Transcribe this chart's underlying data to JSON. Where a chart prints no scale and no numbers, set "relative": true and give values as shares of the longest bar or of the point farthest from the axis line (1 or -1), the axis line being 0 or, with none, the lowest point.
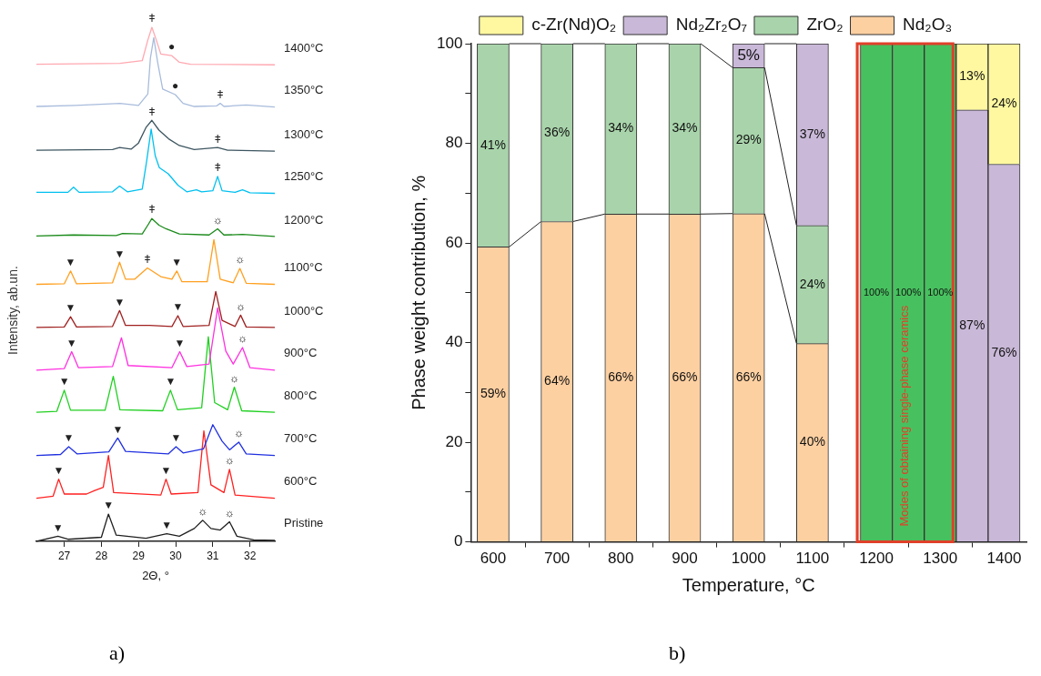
{
  "chart_data": [
    {
      "type": "line",
      "relative": true,
      "xlabel": "2Θ, °",
      "ylabel": "Intensity, ab.un.",
      "xlim": [
        26.25,
        32.67
      ],
      "xticks": [
        27,
        28,
        29,
        30,
        31,
        32
      ],
      "tick_labels": "x",
      "grid": false,
      "legend": false,
      "marker": "none",
      "line_style": "solid",
      "series": [
        {
          "name": "1400°C",
          "color": "#ffa8b0",
          "x": [
            26.25,
            28.5,
            29.1,
            29.25,
            29.36,
            29.48,
            29.6,
            29.89,
            30.1,
            30.4,
            32.67
          ],
          "values": [
            0.928,
            0.93,
            0.935,
            0.975,
            1.0,
            0.975,
            0.948,
            0.945,
            0.932,
            0.928,
            0.927
          ]
        },
        {
          "name": "1350°C",
          "color": "#a8bcdc",
          "x": [
            26.25,
            27.3,
            28.5,
            29.0,
            29.25,
            29.32,
            29.41,
            29.52,
            29.65,
            29.99,
            30.2,
            30.5,
            31.1,
            31.2,
            31.3,
            31.9,
            32.67
          ],
          "values": [
            0.846,
            0.848,
            0.852,
            0.848,
            0.87,
            0.94,
            0.98,
            0.93,
            0.88,
            0.869,
            0.852,
            0.846,
            0.847,
            0.852,
            0.846,
            0.849,
            0.845
          ]
        },
        {
          "name": "1300°C",
          "color": "#3d5560",
          "x": [
            26.25,
            28.3,
            28.49,
            28.8,
            29.0,
            29.2,
            29.36,
            29.55,
            29.81,
            30.1,
            30.5,
            31.13,
            31.4,
            32.67
          ],
          "values": [
            0.761,
            0.762,
            0.766,
            0.763,
            0.775,
            0.805,
            0.819,
            0.8,
            0.783,
            0.77,
            0.762,
            0.766,
            0.761,
            0.759
          ]
        },
        {
          "name": "1250°C",
          "color": "#00c0f0",
          "x": [
            26.25,
            27.1,
            27.25,
            27.4,
            28.3,
            28.49,
            28.7,
            29.1,
            29.22,
            29.34,
            29.45,
            29.56,
            29.8,
            30.06,
            30.3,
            30.56,
            30.7,
            31.0,
            31.13,
            31.25,
            31.6,
            31.8,
            32.0,
            32.67
          ],
          "values": [
            0.679,
            0.679,
            0.689,
            0.679,
            0.68,
            0.691,
            0.68,
            0.685,
            0.74,
            0.802,
            0.75,
            0.727,
            0.715,
            0.693,
            0.68,
            0.684,
            0.68,
            0.682,
            0.71,
            0.682,
            0.679,
            0.684,
            0.678,
            0.677
          ]
        },
        {
          "name": "1200°C",
          "color": "#1a8a1a",
          "x": [
            26.25,
            27.25,
            28.4,
            28.57,
            29.1,
            29.25,
            29.36,
            29.55,
            29.74,
            30.1,
            30.9,
            31.13,
            31.3,
            31.8,
            32.67
          ],
          "values": [
            0.594,
            0.596,
            0.595,
            0.599,
            0.598,
            0.615,
            0.628,
            0.615,
            0.608,
            0.598,
            0.596,
            0.608,
            0.596,
            0.597,
            0.593
          ]
        },
        {
          "name": "1100°C",
          "color": "#ffa020",
          "x": [
            26.25,
            27.0,
            27.17,
            27.33,
            28.3,
            28.49,
            28.65,
            28.9,
            29.24,
            29.6,
            29.9,
            30.03,
            30.17,
            30.85,
            31.03,
            31.2,
            31.55,
            31.73,
            31.9,
            32.67
          ],
          "values": [
            0.5,
            0.501,
            0.526,
            0.501,
            0.503,
            0.543,
            0.51,
            0.51,
            0.532,
            0.515,
            0.51,
            0.526,
            0.505,
            0.505,
            0.587,
            0.51,
            0.503,
            0.531,
            0.502,
            0.5
          ]
        },
        {
          "name": "1000°C",
          "color": "#a02020",
          "x": [
            26.25,
            27.0,
            27.17,
            27.33,
            28.3,
            28.49,
            28.65,
            29.3,
            29.9,
            30.06,
            30.2,
            30.9,
            31.08,
            31.25,
            31.6,
            31.75,
            31.9,
            32.67
          ],
          "values": [
            0.416,
            0.417,
            0.437,
            0.417,
            0.418,
            0.449,
            0.42,
            0.42,
            0.418,
            0.439,
            0.418,
            0.42,
            0.486,
            0.43,
            0.418,
            0.44,
            0.417,
            0.416
          ]
        },
        {
          "name": "900°C",
          "color": "#ff30e0",
          "x": [
            26.25,
            27.0,
            27.2,
            27.38,
            28.3,
            28.54,
            28.72,
            29.9,
            30.11,
            30.3,
            30.9,
            31.13,
            31.35,
            31.55,
            31.8,
            32.0,
            32.67
          ],
          "values": [
            0.333,
            0.336,
            0.369,
            0.338,
            0.34,
            0.396,
            0.342,
            0.338,
            0.369,
            0.34,
            0.345,
            0.454,
            0.37,
            0.345,
            0.377,
            0.338,
            0.333
          ]
        },
        {
          "name": "800°C",
          "color": "#20d020",
          "x": [
            26.25,
            26.8,
            27.0,
            27.17,
            28.1,
            28.32,
            28.5,
            29.65,
            29.86,
            30.05,
            30.7,
            30.88,
            31.05,
            31.4,
            31.58,
            31.78,
            32.67
          ],
          "values": [
            0.251,
            0.253,
            0.294,
            0.255,
            0.255,
            0.321,
            0.256,
            0.254,
            0.294,
            0.256,
            0.26,
            0.398,
            0.27,
            0.256,
            0.3,
            0.254,
            0.251
          ]
        },
        {
          "name": "700°C",
          "color": "#2030e0",
          "x": [
            26.25,
            26.9,
            27.12,
            27.35,
            28.2,
            28.44,
            28.65,
            29.8,
            30.01,
            30.2,
            30.75,
            31.0,
            31.25,
            31.45,
            31.7,
            31.9,
            32.67
          ],
          "values": [
            0.167,
            0.169,
            0.184,
            0.17,
            0.174,
            0.201,
            0.175,
            0.17,
            0.184,
            0.172,
            0.18,
            0.227,
            0.195,
            0.178,
            0.193,
            0.17,
            0.167
          ]
        },
        {
          "name": "600°C",
          "color": "#ff2020",
          "x": [
            26.25,
            26.7,
            26.85,
            27.0,
            27.6,
            27.82,
            28.05,
            28.19,
            28.33,
            29.6,
            29.74,
            29.88,
            30.6,
            30.76,
            30.95,
            31.3,
            31.45,
            31.6,
            32.67
          ],
          "values": [
            0.084,
            0.088,
            0.121,
            0.092,
            0.092,
            0.099,
            0.105,
            0.167,
            0.095,
            0.09,
            0.121,
            0.092,
            0.095,
            0.215,
            0.11,
            0.095,
            0.14,
            0.09,
            0.084
          ]
        },
        {
          "name": "Pristine",
          "color": "#202020",
          "x": [
            26.25,
            26.83,
            27.1,
            28.0,
            28.19,
            28.4,
            29.2,
            29.76,
            30.1,
            30.5,
            30.73,
            30.95,
            31.2,
            31.45,
            31.65,
            32.1,
            32.67
          ],
          "values": [
            0.0,
            0.01,
            0.004,
            0.008,
            0.053,
            0.012,
            0.006,
            0.015,
            0.01,
            0.025,
            0.041,
            0.025,
            0.022,
            0.038,
            0.01,
            0.003,
            0.002
          ]
        }
      ],
      "annotations": [
        {
          "text": "ǂ",
          "x": 29.36,
          "y": 1.0
        },
        {
          "text": "●",
          "x": 29.89,
          "y": 0.945
        },
        {
          "text": "●",
          "x": 29.99,
          "y": 0.869
        },
        {
          "text": "ǂ",
          "x": 31.2,
          "y": 0.852
        },
        {
          "text": "ǂ",
          "x": 29.36,
          "y": 0.819
        },
        {
          "text": "ǂ",
          "x": 31.13,
          "y": 0.766
        },
        {
          "text": "ǂ",
          "x": 31.13,
          "y": 0.71
        },
        {
          "text": "ǂ",
          "x": 29.36,
          "y": 0.628
        },
        {
          "text": "☼",
          "x": 31.13,
          "y": 0.608
        },
        {
          "text": "▼",
          "x": 27.17,
          "y": 0.526
        },
        {
          "text": "▼",
          "x": 28.49,
          "y": 0.543
        },
        {
          "text": "ǂ",
          "x": 29.24,
          "y": 0.532
        },
        {
          "text": "▼",
          "x": 30.03,
          "y": 0.526
        },
        {
          "text": "☼",
          "x": 31.73,
          "y": 0.531
        },
        {
          "text": "▼",
          "x": 27.17,
          "y": 0.437
        },
        {
          "text": "▼",
          "x": 28.49,
          "y": 0.449
        },
        {
          "text": "▼",
          "x": 30.06,
          "y": 0.439
        },
        {
          "text": "☼",
          "x": 31.75,
          "y": 0.44
        },
        {
          "text": "▼",
          "x": 27.2,
          "y": 0.369
        },
        {
          "text": "▼",
          "x": 30.11,
          "y": 0.369
        },
        {
          "text": "☼",
          "x": 31.8,
          "y": 0.377
        },
        {
          "text": "▼",
          "x": 27.0,
          "y": 0.294
        },
        {
          "text": "▼",
          "x": 29.86,
          "y": 0.294
        },
        {
          "text": "☼",
          "x": 31.58,
          "y": 0.3
        },
        {
          "text": "▼",
          "x": 27.12,
          "y": 0.184
        },
        {
          "text": "▼",
          "x": 28.44,
          "y": 0.201
        },
        {
          "text": "▼",
          "x": 30.01,
          "y": 0.184
        },
        {
          "text": "☼",
          "x": 31.7,
          "y": 0.193
        },
        {
          "text": "▼",
          "x": 26.85,
          "y": 0.121
        },
        {
          "text": "▼",
          "x": 29.74,
          "y": 0.121
        },
        {
          "text": "☼",
          "x": 31.45,
          "y": 0.14
        },
        {
          "text": "▼",
          "x": 26.83,
          "y": 0.01
        },
        {
          "text": "▼",
          "x": 28.19,
          "y": 0.053
        },
        {
          "text": "▼",
          "x": 29.76,
          "y": 0.015
        },
        {
          "text": "☼",
          "x": 30.73,
          "y": 0.041
        },
        {
          "text": "☼",
          "x": 31.45,
          "y": 0.038
        },
        "a)"
      ]
    },
    {
      "type": "bar",
      "stacked": true,
      "xlabel": "Temperature, °C",
      "ylabel": "Phase weight contribution, %",
      "legend": "top",
      "grid": false,
      "x": [
        600,
        700,
        800,
        900,
        1000,
        1100,
        1200,
        1250,
        1300,
        1350,
        1400
      ],
      "xlim": [
        565,
        1435
      ],
      "xticks": [
        600,
        700,
        800,
        900,
        1000,
        1100,
        1200,
        1300,
        1400
      ],
      "ylim": [
        0,
        100
      ],
      "yticks": [
        0,
        {
          "value": 10,
          "label": null
        },
        20,
        {
          "value": 30,
          "label": null
        },
        40,
        {
          "value": 50,
          "label": null
        },
        60,
        {
          "value": 70,
          "label": null
        },
        80,
        {
          "value": 90,
          "label": null
        },
        100
      ],
      "series": [
        {
          "name": "Nd₂O₃",
          "color": "#fdd0a2",
          "values": [
            59.2,
            64.3,
            65.8,
            65.8,
            65.9,
            39.8,
            null,
            null,
            null,
            null,
            null
          ],
          "value_labels": [
            "59%",
            "64%",
            "66%",
            "66%",
            "66%",
            "40%",
            null,
            null,
            null,
            null,
            null
          ]
        },
        {
          "name": "ZrO₂",
          "color": "#a9d4ab",
          "values": [
            40.8,
            35.7,
            34.2,
            34.2,
            29.3,
            23.7,
            null,
            null,
            null,
            null,
            null
          ],
          "value_labels": [
            "41%",
            "36%",
            "34%",
            "34%",
            "29%",
            "24%",
            null,
            null,
            null,
            null,
            null
          ]
        },
        {
          "color": "#47c15f",
          "values": [
            null,
            null,
            null,
            null,
            null,
            null,
            100,
            100,
            100,
            null,
            null
          ],
          "value_labels": [
            null,
            null,
            null,
            null,
            null,
            null,
            "100%",
            "100%",
            "100%",
            null,
            null
          ]
        },
        {
          "name": "Nd₂Zr₂O₇",
          "color": "#c9b8d8",
          "values": [
            null,
            null,
            null,
            null,
            4.8,
            36.5,
            null,
            null,
            null,
            86.7,
            75.8
          ],
          "value_labels": [
            null,
            null,
            null,
            null,
            "5%",
            "37%",
            null,
            null,
            null,
            "87%",
            "76%"
          ]
        },
        {
          "name": "c-Zr(Nd)O₂",
          "color": "#fff8a0",
          "values": [
            null,
            null,
            null,
            null,
            null,
            null,
            null,
            null,
            null,
            13.3,
            24.2
          ],
          "value_labels": [
            null,
            null,
            null,
            null,
            null,
            null,
            null,
            null,
            null,
            "13%",
            "24%"
          ]
        }
      ],
      "bands": [
        {
          "axis": "x",
          "from": 1170,
          "to": 1320,
          "label": "Modes of obtaining single-phase ceramics",
          "color": "#e0402a"
        }
      ],
      "annotations": [
        "b)"
      ]
    }
  ]
}
